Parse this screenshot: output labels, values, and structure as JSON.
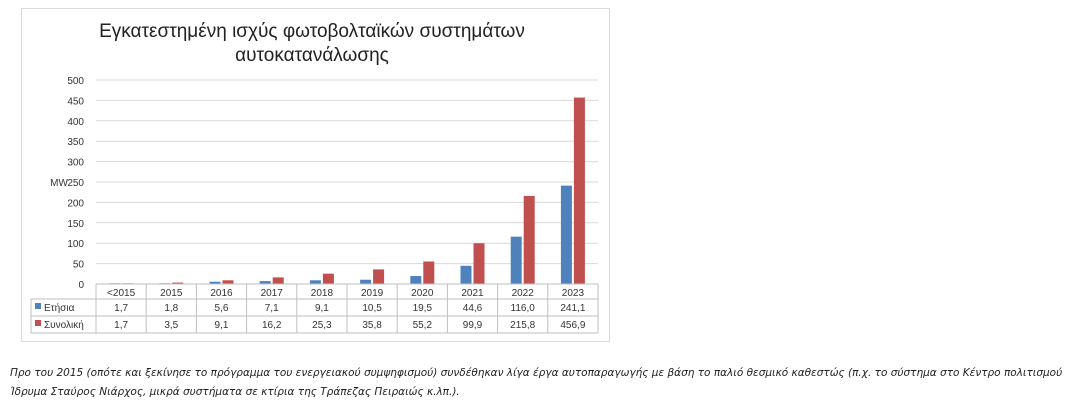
{
  "chart_data": {
    "type": "bar",
    "title_lines": [
      "Εγκατεστημένη ισχύς φωτοβολταϊκών συστημάτων",
      "αυτοκατανάλωσης"
    ],
    "ylabel": "MW",
    "xlabel": "",
    "ylim": [
      0,
      500
    ],
    "yticks": [
      0,
      50,
      100,
      150,
      200,
      250,
      300,
      350,
      400,
      450,
      500
    ],
    "grid": true,
    "legend": "data-table",
    "categories": [
      "<2015",
      "2015",
      "2016",
      "2017",
      "2018",
      "2019",
      "2020",
      "2021",
      "2022",
      "2023"
    ],
    "series": [
      {
        "name": "Ετήσια",
        "color": "#4f81bd",
        "values": [
          1.7,
          1.8,
          5.6,
          7.1,
          9.1,
          10.5,
          19.5,
          44.6,
          116.0,
          241.1
        ],
        "labels": [
          "1,7",
          "1,8",
          "5,6",
          "7,1",
          "9,1",
          "10,5",
          "19,5",
          "44,6",
          "116,0",
          "241,1"
        ]
      },
      {
        "name": "Συνολική",
        "color": "#c0504d",
        "values": [
          1.7,
          3.5,
          9.1,
          16.2,
          25.3,
          35.8,
          55.2,
          99.9,
          215.8,
          456.9
        ],
        "labels": [
          "1,7",
          "3,5",
          "9,1",
          "16,2",
          "25,3",
          "35,8",
          "55,2",
          "99,9",
          "215,8",
          "456,9"
        ]
      }
    ]
  },
  "note": "Προ του 2015 (οπότε και ξεκίνησε το πρόγραμμα του ενεργειακού συμψηφισμού) συνδέθηκαν λίγα έργα αυτοπαραγωγής με βάση το παλιό θεσμικό καθεστώς (π.χ. το σύστημα στο Κέντρο πολιτισμού Ίδρυμα Σταύρος Νιάρχος, μικρά συστήματα σε κτίρια της Τράπεζας Πειραιώς κ.λπ.)."
}
